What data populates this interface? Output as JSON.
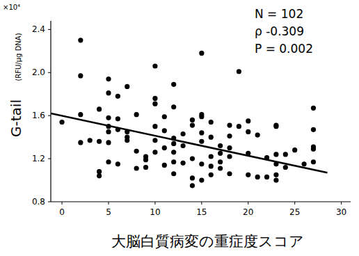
{
  "chart_data": {
    "type": "scatter",
    "x_label": "大脳白質病変の重症度スコア",
    "y_label": "G-tail",
    "y_label_unit": "(RFU/μg DNA)",
    "y_multiplier": "×10⁴",
    "annotations": [
      "N = 102",
      "ρ -0.309",
      "P = 0.002"
    ],
    "color": "#000000",
    "marker": "circle",
    "x": [
      0,
      2,
      2,
      2,
      2,
      3,
      4,
      4,
      4,
      4,
      5,
      5,
      5,
      5,
      5,
      5,
      5,
      6,
      6,
      6,
      6,
      7,
      7,
      7,
      7,
      8,
      8,
      8,
      9,
      9,
      9,
      10,
      10,
      10,
      10,
      10,
      10,
      11,
      11,
      11,
      11,
      12,
      12,
      12,
      12,
      12,
      12,
      12,
      13,
      13,
      13,
      14,
      14,
      14,
      14,
      14,
      15,
      15,
      15,
      15,
      15,
      15,
      15,
      16,
      16,
      16,
      16,
      16,
      17,
      17,
      17,
      17,
      18,
      18,
      18,
      18,
      18,
      19,
      19,
      20,
      20,
      20,
      20,
      21,
      21,
      22,
      22,
      23,
      23,
      23,
      23,
      23,
      23,
      24,
      24,
      25,
      26,
      27,
      27,
      27,
      27,
      27
    ],
    "values": [
      1.54,
      2.3,
      1.97,
      1.61,
      1.35,
      1.37,
      1.66,
      1.36,
      1.08,
      1.04,
      1.94,
      1.81,
      1.58,
      1.5,
      1.45,
      1.35,
      1.17,
      1.78,
      1.57,
      1.47,
      1.15,
      1.87,
      1.45,
      1.4,
      1.37,
      1.61,
      1.27,
      1.11,
      1.22,
      1.19,
      1.12,
      2.06,
      1.76,
      1.71,
      1.5,
      1.37,
      1.26,
      1.59,
      1.46,
      1.3,
      1.14,
      1.89,
      1.68,
      1.39,
      1.34,
      1.26,
      1.17,
      1.06,
      1.43,
      1.32,
      1.16,
      1.56,
      1.51,
      1.2,
      1.02,
      0.95,
      2.18,
      1.61,
      1.59,
      1.44,
      1.36,
      1.15,
      1.0,
      1.54,
      1.4,
      1.22,
      1.13,
      1.05,
      1.32,
      1.25,
      1.17,
      1.11,
      1.51,
      1.41,
      1.3,
      1.22,
      1.06,
      2.01,
      1.5,
      1.55,
      1.45,
      1.25,
      1.05,
      1.42,
      1.03,
      1.21,
      1.03,
      1.51,
      1.5,
      1.24,
      1.15,
      1.05,
      1.0,
      1.24,
      1.12,
      1.28,
      1.15,
      1.67,
      1.47,
      1.31,
      1.29,
      1.17
    ],
    "trendline": {
      "x": [
        -1.2,
        28.5
      ],
      "y": [
        1.62,
        1.07
      ]
    },
    "xlim": [
      -1.2,
      31
    ],
    "ylim": [
      0.8,
      2.48
    ],
    "xticks": [
      0,
      5,
      10,
      15,
      20,
      25,
      30
    ],
    "yticks": [
      0.8,
      1.2,
      1.6,
      {
        "value": 2,
        "label": "2.0"
      },
      2.4
    ],
    "grid": false
  }
}
